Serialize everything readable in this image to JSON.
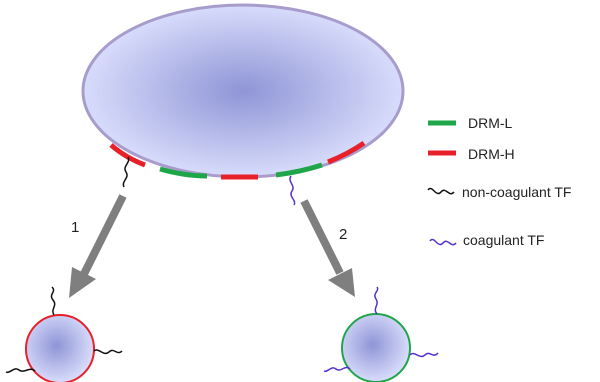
{
  "legend": {
    "items": [
      {
        "key": "drm_l",
        "label": "DRM-L",
        "color": "#1fa64a"
      },
      {
        "key": "drm_h",
        "label": "DRM-H",
        "color": "#e8202a"
      },
      {
        "key": "non_coag_tf",
        "label": "non-coagulant TF",
        "color": "#111111"
      },
      {
        "key": "coag_tf",
        "label": "coagulant TF",
        "color": "#5533cc"
      }
    ]
  },
  "pathways": [
    {
      "label": "1"
    },
    {
      "label": "2"
    }
  ],
  "colors": {
    "cell_fill_center": "#8f95d6",
    "cell_fill_edge": "#dfe3ff",
    "cell_outline": "#a79ccc",
    "arrow": "#7f7f7f",
    "vesicle_1_outline": "#e8202a",
    "vesicle_2_outline": "#1fa64a"
  }
}
